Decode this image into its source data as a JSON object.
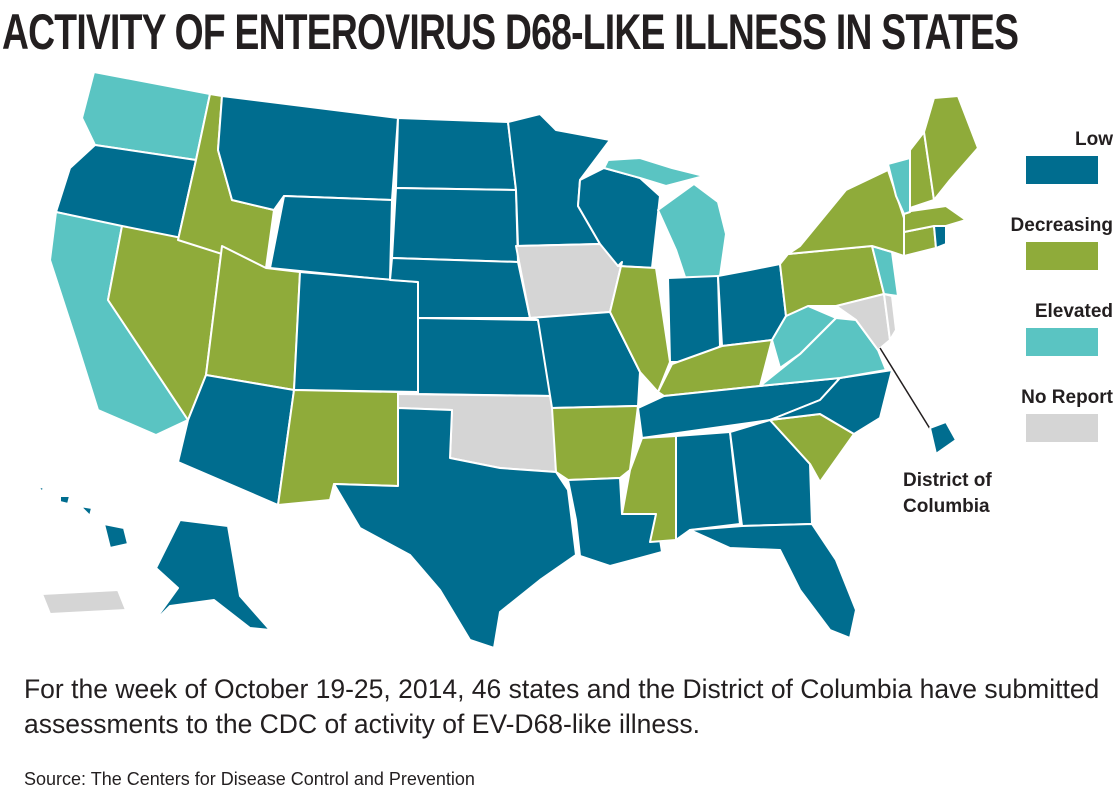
{
  "title": "ACTIVITY OF ENTEROVIRUS D68-LIKE ILLNESS IN STATES",
  "legend": [
    {
      "key": "low",
      "label": "Low",
      "color": "#006d8f"
    },
    {
      "key": "decreasing",
      "label": "Decreasing",
      "color": "#8fab3a"
    },
    {
      "key": "elevated",
      "label": "Elevated",
      "color": "#5ac4c2"
    },
    {
      "key": "no_report",
      "label": "No Report",
      "color": "#d5d5d5"
    }
  ],
  "dc_callout": {
    "line1": "District of",
    "line2": "Columbia"
  },
  "description": "For the week of October 19-25, 2014, 46 states and the District of Columbia have submitted assessments to the CDC of activity of EV-D68-like illness.",
  "source": "Source: The Centers for Disease Control and Prevention",
  "states": {
    "WA": "elevated",
    "OR": "low",
    "CA": "elevated",
    "NV": "decreasing",
    "ID": "decreasing",
    "MT": "low",
    "WY": "low",
    "UT": "decreasing",
    "AZ": "low",
    "CO": "low",
    "NM": "decreasing",
    "ND": "low",
    "SD": "low",
    "NE": "low",
    "KS": "low",
    "OK": "no_report",
    "TX": "low",
    "MN": "low",
    "IA": "no_report",
    "MO": "low",
    "AR": "decreasing",
    "LA": "low",
    "WI": "low",
    "IL": "decreasing",
    "MI": "elevated",
    "IN": "low",
    "OH": "low",
    "KY": "decreasing",
    "TN": "low",
    "MS": "decreasing",
    "AL": "low",
    "GA": "low",
    "FL": "low",
    "SC": "decreasing",
    "NC": "low",
    "VA": "elevated",
    "WV": "elevated",
    "MD": "no_report",
    "DE": "no_report",
    "PA": "decreasing",
    "NJ": "elevated",
    "NY": "decreasing",
    "CT": "decreasing",
    "RI": "low",
    "MA": "decreasing",
    "VT": "elevated",
    "NH": "decreasing",
    "ME": "decreasing",
    "AK": "low",
    "HI": "low",
    "PR": "no_report",
    "DC": "low"
  }
}
